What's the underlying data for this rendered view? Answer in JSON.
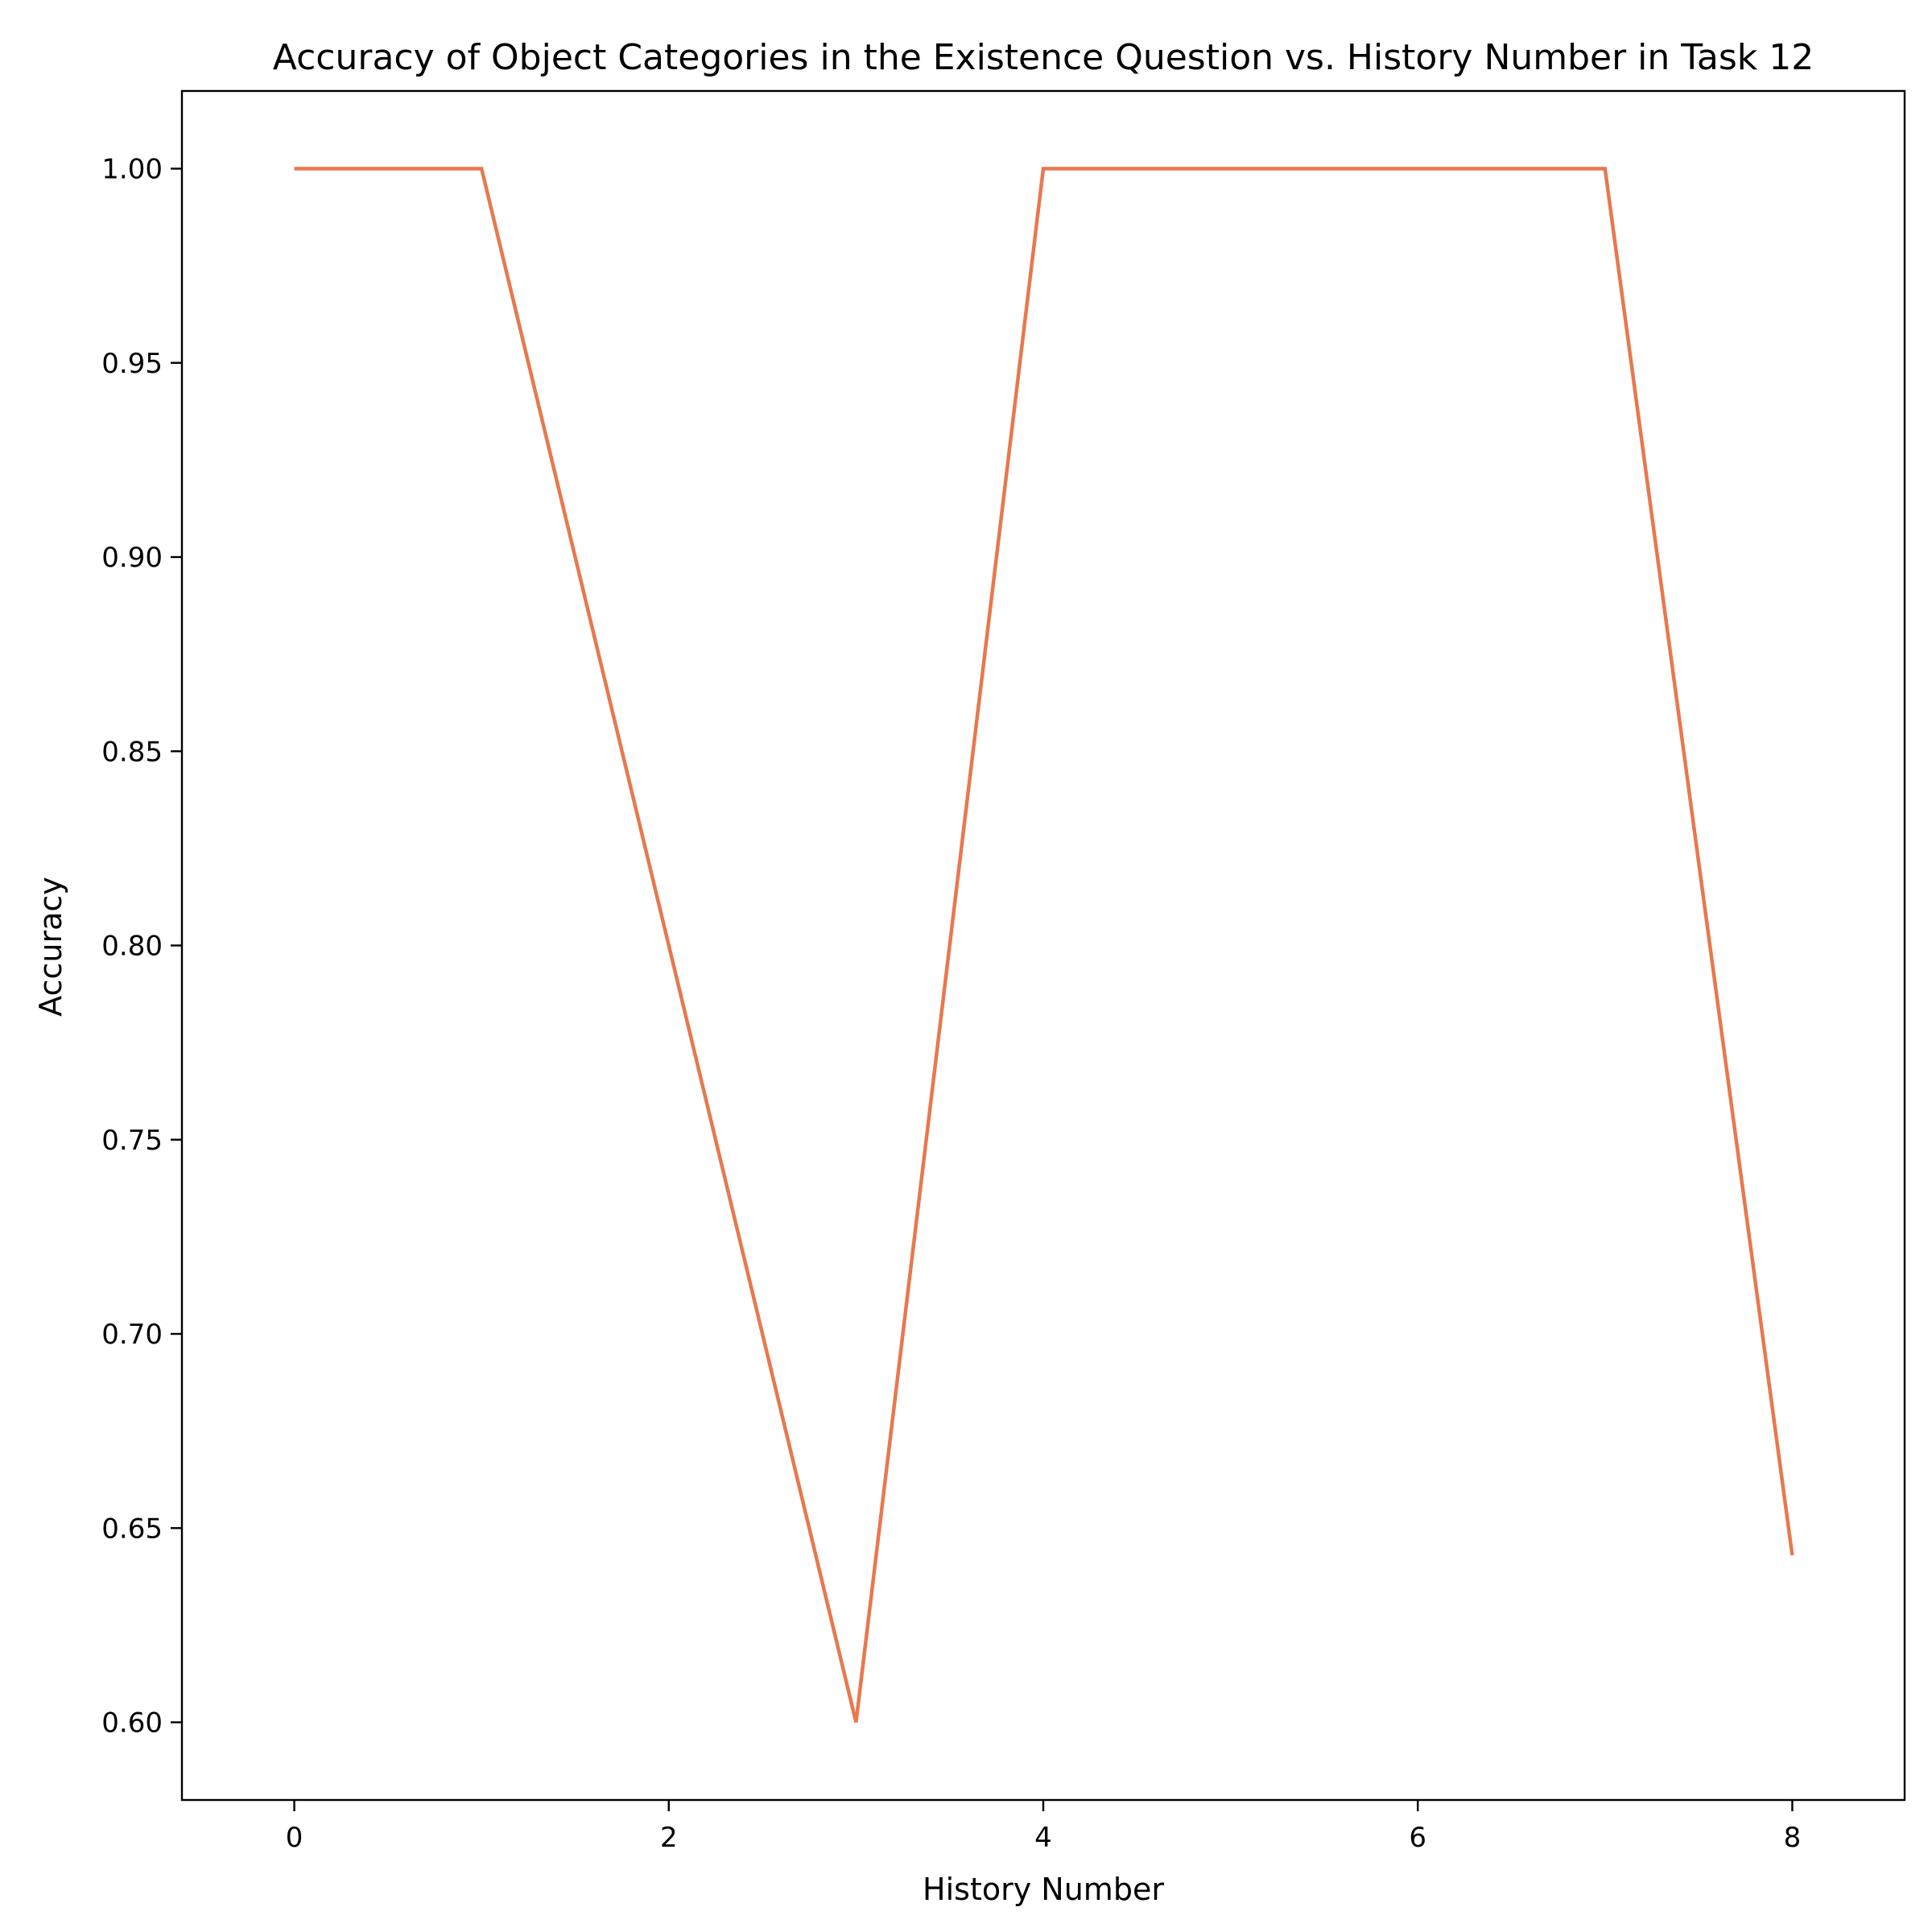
{
  "chart_data": {
    "type": "line",
    "title": "Accuracy of Object Categories in the Existence Question vs. History Number in Task 12",
    "xlabel": "History Number",
    "ylabel": "Accuracy",
    "xlim": [
      -0.6,
      8.6
    ],
    "ylim": [
      0.58,
      1.02
    ],
    "xticks": [
      0,
      2,
      4,
      6,
      8
    ],
    "xtick_labels": [
      "0",
      "2",
      "4",
      "6",
      "8"
    ],
    "yticks": [
      0.6,
      0.65,
      0.7,
      0.75,
      0.8,
      0.85,
      0.9,
      0.95,
      1.0
    ],
    "ytick_labels": [
      "0.60",
      "0.65",
      "0.70",
      "0.75",
      "0.80",
      "0.85",
      "0.90",
      "0.95",
      "1.00"
    ],
    "grid": false,
    "series": [
      {
        "x": [
          0,
          1,
          2,
          3,
          4,
          5,
          6,
          7,
          8
        ],
        "values": [
          1.0,
          1.0,
          0.8,
          0.6,
          1.0,
          1.0,
          1.0,
          1.0,
          0.643
        ],
        "color": "#e8784d"
      }
    ]
  }
}
